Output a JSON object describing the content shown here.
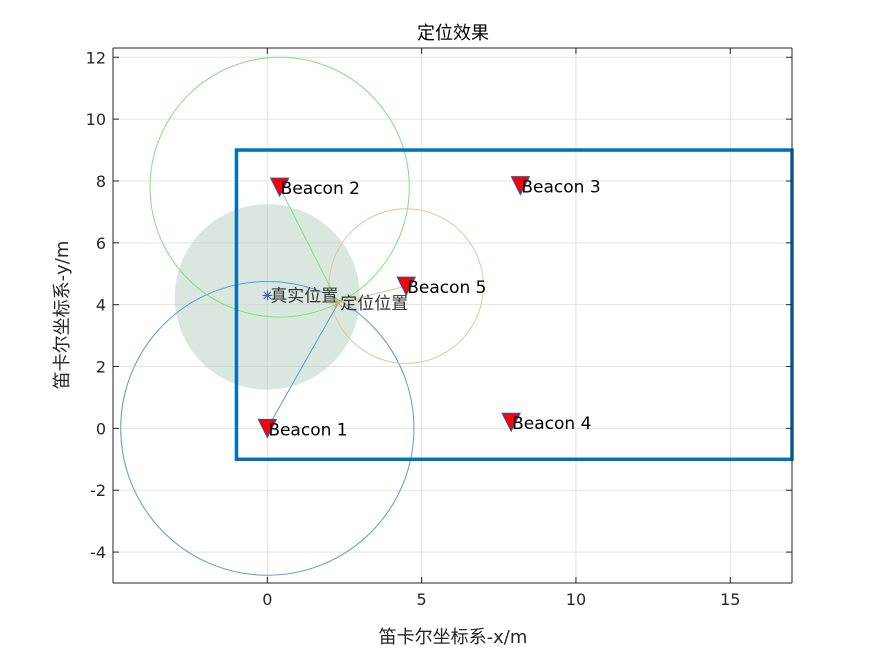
{
  "chart_data": {
    "type": "scatter",
    "title": "定位效果",
    "xlabel": "笛卡尔坐标系-x/m",
    "ylabel": "笛卡尔坐标系-y/m",
    "xlim": [
      -5,
      17
    ],
    "ylim": [
      -5,
      12.3
    ],
    "xticks": [
      0,
      5,
      10,
      15
    ],
    "yticks": [
      -4,
      -2,
      0,
      2,
      4,
      6,
      8,
      10,
      12
    ],
    "xtick_labels": [
      "0",
      "5",
      "10",
      "15"
    ],
    "ytick_labels": [
      "-4",
      "-2",
      "0",
      "2",
      "4",
      "6",
      "8",
      "10",
      "12"
    ],
    "grid": true,
    "boundary": {
      "x": [
        -1,
        17
      ],
      "y": [
        -1,
        9
      ],
      "color": "#0072BD"
    },
    "beacons": [
      {
        "name": "Beacon 1",
        "x": 0.0,
        "y": 0.0
      },
      {
        "name": "Beacon 2",
        "x": 0.4,
        "y": 7.8
      },
      {
        "name": "Beacon 3",
        "x": 8.2,
        "y": 7.85
      },
      {
        "name": "Beacon 4",
        "x": 7.9,
        "y": 0.2
      },
      {
        "name": "Beacon 5",
        "x": 4.5,
        "y": 4.6
      }
    ],
    "beacon_color": "#FF0000",
    "ranging_circles": [
      {
        "beacon": "Beacon 1",
        "cx": 0.0,
        "cy": 0.0,
        "r": 4.75,
        "color": "#5B9BD5"
      },
      {
        "beacon": "Beacon 2",
        "cx": 0.4,
        "cy": 7.8,
        "r": 4.2,
        "color": "#7FE07F"
      },
      {
        "beacon": "Beacon 5",
        "cx": 4.5,
        "cy": 4.6,
        "r": 2.5,
        "color": "#E0C8A0"
      }
    ],
    "error_region": {
      "cx": 0.0,
      "cy": 4.25,
      "r": 3.0,
      "color": "#BCD4C4"
    },
    "true_position": {
      "label": "真实位置",
      "x": 0.0,
      "y": 4.3,
      "color": "#3355CC"
    },
    "estimated_position": {
      "label": "定位位置",
      "x": 2.3,
      "y": 4.05,
      "color": "#E0A030"
    }
  }
}
